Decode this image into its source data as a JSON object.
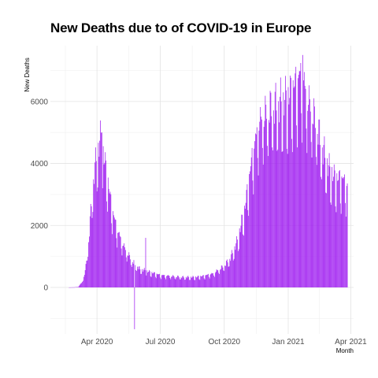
{
  "chart_data": {
    "type": "bar",
    "title": "New Deaths due to of COVID-19 in Europe",
    "xlabel": "Month",
    "ylabel": "New Deaths",
    "bar_color": "#a020f0",
    "grid": true,
    "xlim": [
      "2020-01-25",
      "2021-04-05"
    ],
    "ylim": [
      -1500,
      7800
    ],
    "y_ticks": [
      0,
      2000,
      4000,
      6000
    ],
    "x_ticks": [
      {
        "date": "2020-04-01",
        "label": "Apr 2020"
      },
      {
        "date": "2020-07-01",
        "label": "Jul 2020"
      },
      {
        "date": "2020-10-01",
        "label": "Oct 2020"
      },
      {
        "date": "2021-01-01",
        "label": "Jan 2021"
      },
      {
        "date": "2021-04-01",
        "label": "Apr 2021"
      }
    ],
    "series_keypoints": [
      [
        "2020-02-21",
        0
      ],
      [
        "2020-02-29",
        5
      ],
      [
        "2020-03-05",
        20
      ],
      [
        "2020-03-10",
        150
      ],
      [
        "2020-03-15",
        500
      ],
      [
        "2020-03-20",
        1500
      ],
      [
        "2020-03-24",
        2700
      ],
      [
        "2020-03-28",
        3700
      ],
      [
        "2020-04-01",
        4200
      ],
      [
        "2020-04-04",
        4600
      ],
      [
        "2020-04-07",
        4800
      ],
      [
        "2020-04-10",
        4300
      ],
      [
        "2020-04-15",
        3700
      ],
      [
        "2020-04-20",
        2900
      ],
      [
        "2020-04-25",
        2300
      ],
      [
        "2020-05-01",
        1800
      ],
      [
        "2020-05-10",
        1300
      ],
      [
        "2020-05-20",
        900
      ],
      [
        "2020-06-01",
        600
      ],
      [
        "2020-06-15",
        500
      ],
      [
        "2020-07-01",
        400
      ],
      [
        "2020-08-01",
        330
      ],
      [
        "2020-08-20",
        330
      ],
      [
        "2020-09-01",
        370
      ],
      [
        "2020-09-15",
        450
      ],
      [
        "2020-10-01",
        700
      ],
      [
        "2020-10-10",
        950
      ],
      [
        "2020-10-20",
        1500
      ],
      [
        "2020-10-31",
        2600
      ],
      [
        "2020-11-10",
        4200
      ],
      [
        "2020-11-20",
        5300
      ],
      [
        "2020-11-30",
        5600
      ],
      [
        "2020-12-10",
        5800
      ],
      [
        "2020-12-20",
        5900
      ],
      [
        "2021-01-01",
        6100
      ],
      [
        "2021-01-12",
        6600
      ],
      [
        "2021-01-20",
        6900
      ],
      [
        "2021-01-28",
        6100
      ],
      [
        "2021-02-10",
        5300
      ],
      [
        "2021-02-20",
        4400
      ],
      [
        "2021-03-01",
        3800
      ],
      [
        "2021-03-10",
        3500
      ],
      [
        "2021-03-20",
        3500
      ],
      [
        "2021-03-27",
        3300
      ]
    ],
    "notable_days": [
      {
        "date": "2020-04-08",
        "value": 5000
      },
      {
        "date": "2020-05-25",
        "value": -1350
      },
      {
        "date": "2020-06-10",
        "value": 1600
      },
      {
        "date": "2021-01-22",
        "value": 7500
      }
    ]
  }
}
